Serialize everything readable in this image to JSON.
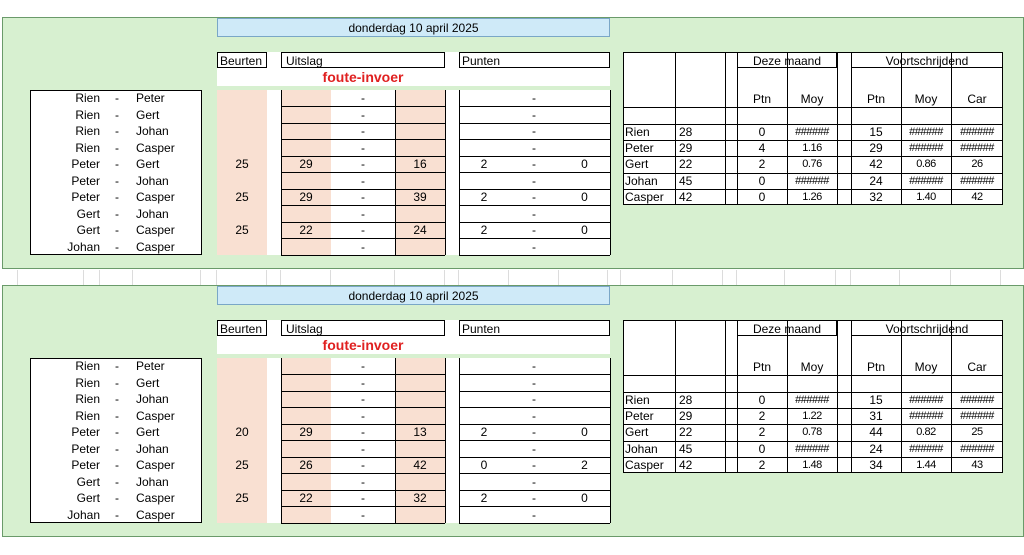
{
  "sheets": [
    {
      "date": "donderdag 10 april 2025",
      "headers": {
        "beurten": "Beurten",
        "uitslag": "Uitslag",
        "punten": "Punten"
      },
      "error": "foute-invoer",
      "matches": [
        {
          "a": "Rien",
          "sep": "-",
          "b": "Peter",
          "beurten": "",
          "s1": "",
          "dash": "-",
          "s2": "",
          "p1": "",
          "pd": "-",
          "p2": ""
        },
        {
          "a": "Rien",
          "sep": "-",
          "b": "Gert",
          "beurten": "",
          "s1": "",
          "dash": "-",
          "s2": "",
          "p1": "",
          "pd": "-",
          "p2": ""
        },
        {
          "a": "Rien",
          "sep": "-",
          "b": "Johan",
          "beurten": "",
          "s1": "",
          "dash": "-",
          "s2": "",
          "p1": "",
          "pd": "-",
          "p2": ""
        },
        {
          "a": "Rien",
          "sep": "-",
          "b": "Casper",
          "beurten": "",
          "s1": "",
          "dash": "-",
          "s2": "",
          "p1": "",
          "pd": "-",
          "p2": ""
        },
        {
          "a": "Peter",
          "sep": "-",
          "b": "Gert",
          "beurten": "25",
          "s1": "29",
          "dash": "-",
          "s2": "16",
          "p1": "2",
          "pd": "-",
          "p2": "0"
        },
        {
          "a": "Peter",
          "sep": "-",
          "b": "Johan",
          "beurten": "",
          "s1": "",
          "dash": "-",
          "s2": "",
          "p1": "",
          "pd": "-",
          "p2": ""
        },
        {
          "a": "Peter",
          "sep": "-",
          "b": "Casper",
          "beurten": "25",
          "s1": "29",
          "dash": "-",
          "s2": "39",
          "p1": "2",
          "pd": "-",
          "p2": "0"
        },
        {
          "a": "Gert",
          "sep": "-",
          "b": "Johan",
          "beurten": "",
          "s1": "",
          "dash": "-",
          "s2": "",
          "p1": "",
          "pd": "-",
          "p2": ""
        },
        {
          "a": "Gert",
          "sep": "-",
          "b": "Casper",
          "beurten": "25",
          "s1": "22",
          "dash": "-",
          "s2": "24",
          "p1": "2",
          "pd": "-",
          "p2": "0"
        },
        {
          "a": "Johan",
          "sep": "-",
          "b": "Casper",
          "beurten": "",
          "s1": "",
          "dash": "-",
          "s2": "",
          "p1": "",
          "pd": "-",
          "p2": ""
        }
      ],
      "standings": {
        "month_title": "Deze maand",
        "cum_title": "Voortschrijdend",
        "cols": {
          "ptn": "Ptn",
          "moy": "Moy",
          "ptn2": "Ptn",
          "moy2": "Moy",
          "car": "Car"
        },
        "rows": [
          {
            "name": "Rien",
            "num": "28",
            "ptn": "0",
            "moy": "######",
            "ptn2": "15",
            "moy2": "######",
            "car": "######"
          },
          {
            "name": "Peter",
            "num": "29",
            "ptn": "4",
            "moy": "1.16",
            "ptn2": "29",
            "moy2": "######",
            "car": "######"
          },
          {
            "name": "Gert",
            "num": "22",
            "ptn": "2",
            "moy": "0.76",
            "ptn2": "42",
            "moy2": "0.86",
            "car": "26"
          },
          {
            "name": "Johan",
            "num": "45",
            "ptn": "0",
            "moy": "######",
            "ptn2": "24",
            "moy2": "######",
            "car": "######"
          },
          {
            "name": "Casper",
            "num": "42",
            "ptn": "0",
            "moy": "1.26",
            "ptn2": "32",
            "moy2": "1.40",
            "car": "42"
          }
        ]
      }
    },
    {
      "date": "donderdag 10 april 2025",
      "headers": {
        "beurten": "Beurten",
        "uitslag": "Uitslag",
        "punten": "Punten"
      },
      "error": "foute-invoer",
      "matches": [
        {
          "a": "Rien",
          "sep": "-",
          "b": "Peter",
          "beurten": "",
          "s1": "",
          "dash": "-",
          "s2": "",
          "p1": "",
          "pd": "-",
          "p2": ""
        },
        {
          "a": "Rien",
          "sep": "-",
          "b": "Gert",
          "beurten": "",
          "s1": "",
          "dash": "-",
          "s2": "",
          "p1": "",
          "pd": "-",
          "p2": ""
        },
        {
          "a": "Rien",
          "sep": "-",
          "b": "Johan",
          "beurten": "",
          "s1": "",
          "dash": "-",
          "s2": "",
          "p1": "",
          "pd": "-",
          "p2": ""
        },
        {
          "a": "Rien",
          "sep": "-",
          "b": "Casper",
          "beurten": "",
          "s1": "",
          "dash": "-",
          "s2": "",
          "p1": "",
          "pd": "-",
          "p2": ""
        },
        {
          "a": "Peter",
          "sep": "-",
          "b": "Gert",
          "beurten": "20",
          "s1": "29",
          "dash": "-",
          "s2": "13",
          "p1": "2",
          "pd": "-",
          "p2": "0"
        },
        {
          "a": "Peter",
          "sep": "-",
          "b": "Johan",
          "beurten": "",
          "s1": "",
          "dash": "-",
          "s2": "",
          "p1": "",
          "pd": "-",
          "p2": ""
        },
        {
          "a": "Peter",
          "sep": "-",
          "b": "Casper",
          "beurten": "25",
          "s1": "26",
          "dash": "-",
          "s2": "42",
          "p1": "0",
          "pd": "-",
          "p2": "2"
        },
        {
          "a": "Gert",
          "sep": "-",
          "b": "Johan",
          "beurten": "",
          "s1": "",
          "dash": "-",
          "s2": "",
          "p1": "",
          "pd": "-",
          "p2": ""
        },
        {
          "a": "Gert",
          "sep": "-",
          "b": "Casper",
          "beurten": "25",
          "s1": "22",
          "dash": "-",
          "s2": "32",
          "p1": "2",
          "pd": "-",
          "p2": "0"
        },
        {
          "a": "Johan",
          "sep": "-",
          "b": "Casper",
          "beurten": "",
          "s1": "",
          "dash": "-",
          "s2": "",
          "p1": "",
          "pd": "-",
          "p2": ""
        }
      ],
      "standings": {
        "month_title": "Deze maand",
        "cum_title": "Voortschrijdend",
        "cols": {
          "ptn": "Ptn",
          "moy": "Moy",
          "ptn2": "Ptn",
          "moy2": "Moy",
          "car": "Car"
        },
        "rows": [
          {
            "name": "Rien",
            "num": "28",
            "ptn": "0",
            "moy": "######",
            "ptn2": "15",
            "moy2": "######",
            "car": "######"
          },
          {
            "name": "Peter",
            "num": "29",
            "ptn": "2",
            "moy": "1.22",
            "ptn2": "31",
            "moy2": "######",
            "car": "######"
          },
          {
            "name": "Gert",
            "num": "22",
            "ptn": "2",
            "moy": "0.78",
            "ptn2": "44",
            "moy2": "0.82",
            "car": "25"
          },
          {
            "name": "Johan",
            "num": "45",
            "ptn": "0",
            "moy": "######",
            "ptn2": "24",
            "moy2": "######",
            "car": "######"
          },
          {
            "name": "Casper",
            "num": "42",
            "ptn": "2",
            "moy": "1.48",
            "ptn2": "34",
            "moy2": "1.44",
            "car": "43"
          }
        ]
      }
    }
  ],
  "colors": {
    "panel": "#d7f0d0",
    "date_bar": "#cfeaf8",
    "score_fill": "#f9e0d2",
    "error": "#e02020"
  }
}
